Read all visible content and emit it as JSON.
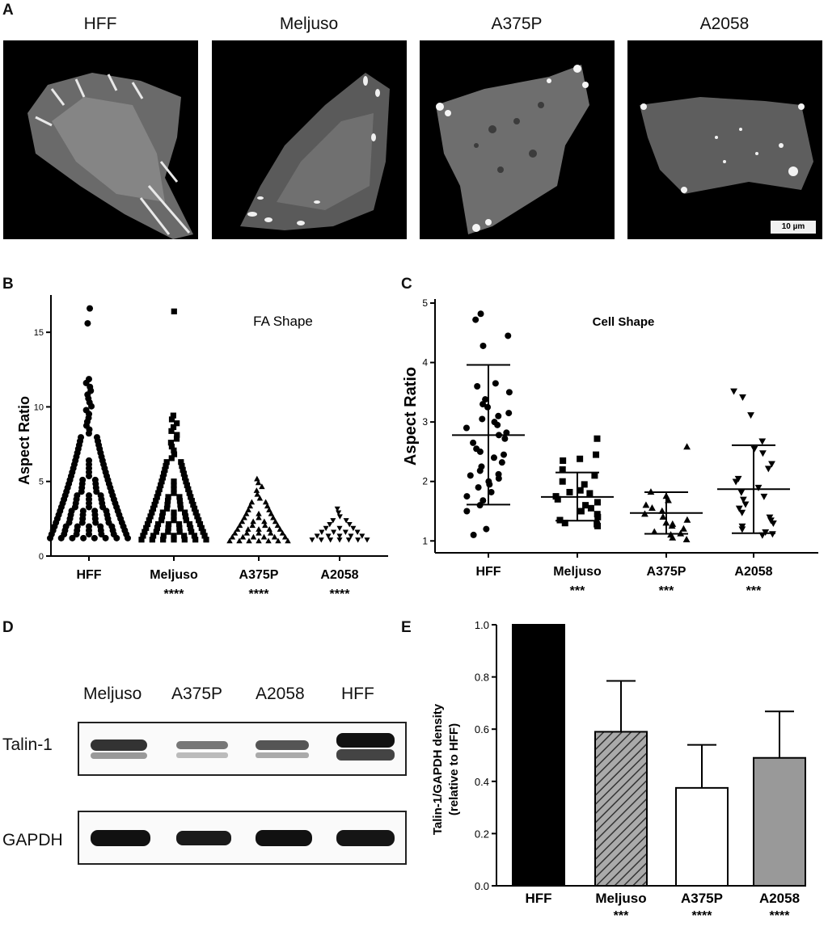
{
  "panels": {
    "A": "A",
    "B": "B",
    "C": "C",
    "D": "D",
    "E": "E"
  },
  "panel_a": {
    "cell_lines": [
      "HFF",
      "Meljuso",
      "A375P",
      "A2058"
    ],
    "scale_bar": "10 µm"
  },
  "chart_data": [
    {
      "id": "B",
      "type": "scatter",
      "title": "FA Shape",
      "ylabel": "Aspect Ratio",
      "xlabel": "",
      "categories": [
        "HFF",
        "Meljuso",
        "A375P",
        "A2058"
      ],
      "significance": [
        "",
        "****",
        "****",
        "****"
      ],
      "ylim": [
        0,
        17.5
      ],
      "yticks": [
        0,
        5,
        10,
        15
      ],
      "markers": [
        "circle",
        "square",
        "triangle-up",
        "triangle-down"
      ],
      "series": [
        {
          "values_range": [
            1.2,
            12.0
          ],
          "outliers": [
            15.6,
            16.6
          ]
        },
        {
          "values_range": [
            1.1,
            9.6
          ],
          "outliers": [
            16.4
          ]
        },
        {
          "values_range": [
            1.0,
            5.4
          ],
          "outliers": []
        },
        {
          "values_range": [
            1.1,
            3.3
          ],
          "outliers": []
        }
      ]
    },
    {
      "id": "C",
      "type": "scatter",
      "title": "Cell Shape",
      "ylabel": "Aspect Ratio",
      "xlabel": "",
      "categories": [
        "HFF",
        "Meljuso",
        "A375P",
        "A2058"
      ],
      "significance": [
        "",
        "***",
        "***",
        "***"
      ],
      "ylim": [
        0.8,
        5.0
      ],
      "yticks": [
        1,
        2,
        3,
        4,
        5
      ],
      "markers": [
        "circle",
        "square",
        "triangle-up",
        "triangle-down"
      ],
      "mean": [
        2.78,
        1.74,
        1.47,
        1.87
      ],
      "sd_upper": [
        3.96,
        2.15,
        1.82,
        2.61
      ],
      "sd_lower": [
        1.61,
        1.34,
        1.12,
        1.13
      ],
      "points": [
        [
          4.82,
          4.72,
          4.45,
          4.28,
          3.65,
          3.6,
          3.5,
          3.38,
          3.3,
          3.25,
          3.15,
          3.1,
          3.05,
          3.0,
          2.95,
          2.9,
          2.82,
          2.78,
          2.72,
          2.65,
          2.55,
          2.5,
          2.45,
          2.4,
          2.32,
          2.25,
          2.18,
          2.12,
          2.1,
          2.05,
          2.0,
          1.95,
          1.9,
          1.82,
          1.75,
          1.68,
          1.6,
          1.5,
          1.2,
          1.1
        ],
        [
          2.72,
          2.45,
          2.38,
          2.35,
          2.2,
          2.1,
          2.0,
          1.95,
          1.85,
          1.82,
          1.8,
          1.75,
          1.7,
          1.65,
          1.6,
          1.55,
          1.5,
          1.45,
          1.4,
          1.35,
          1.3,
          1.28,
          1.25
        ],
        [
          2.58,
          1.82,
          1.75,
          1.68,
          1.6,
          1.55,
          1.5,
          1.45,
          1.4,
          1.35,
          1.3,
          1.28,
          1.25,
          1.2,
          1.15,
          1.12,
          1.1,
          1.05,
          1.02
        ],
        [
          3.52,
          3.42,
          3.12,
          2.68,
          2.55,
          2.48,
          2.3,
          2.22,
          2.05,
          2.0,
          1.9,
          1.82,
          1.75,
          1.7,
          1.62,
          1.55,
          1.48,
          1.4,
          1.35,
          1.3,
          1.25,
          1.2,
          1.15,
          1.12,
          1.1
        ]
      ]
    },
    {
      "id": "E",
      "type": "bar",
      "title": "",
      "ylabel": "Talin-1/GAPDH density",
      "ylabel2": "(relative to HFF)",
      "xlabel": "",
      "categories": [
        "HFF",
        "Meljuso",
        "A375P",
        "A2058"
      ],
      "values": [
        1.0,
        0.59,
        0.375,
        0.49
      ],
      "error_upper": [
        1.0,
        0.785,
        0.54,
        0.668
      ],
      "significance": [
        "",
        "***",
        "****",
        "****"
      ],
      "fills": [
        "#000000",
        "hatch",
        "#ffffff",
        "#999999"
      ],
      "ylim": [
        0,
        1.0
      ],
      "yticks": [
        "0.0",
        "0.2",
        "0.4",
        "0.6",
        "0.8",
        "1.0"
      ]
    }
  ],
  "panel_d": {
    "lane_labels": [
      "Meljuso",
      "A375P",
      "A2058",
      "HFF"
    ],
    "rows": [
      "Talin-1",
      "GAPDH"
    ]
  }
}
